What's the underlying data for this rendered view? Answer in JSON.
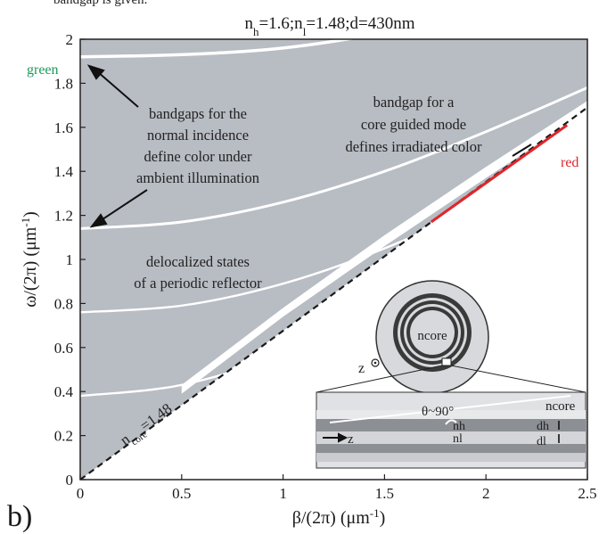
{
  "header_fragment": "bandgap is given.",
  "panel_label": "b)",
  "colors": {
    "plot_bg": "#b8bcc3",
    "band": "#ffffff",
    "red_mode": "#e0262b",
    "green_label": "#1e9a5a",
    "red_label": "#e0262b",
    "text": "#1a1a1a"
  },
  "chart_data": {
    "type": "line",
    "title": "n_h=1.6;n_l=1.48;d=430nm",
    "xlabel": "β/(2π) (μm⁻¹)",
    "ylabel": "ω/(2π) (μm⁻¹)",
    "xlim": [
      0,
      2.5
    ],
    "ylim": [
      0,
      2
    ],
    "xticks": [
      "0",
      "0.5",
      "1",
      "1.5",
      "2",
      "2.5"
    ],
    "yticks": [
      "0",
      "0.2",
      "0.4",
      "0.6",
      "0.8",
      "1",
      "1.2",
      "1.4",
      "1.6",
      "1.8",
      "2"
    ],
    "grid": false,
    "light_line_label": "n_core=1.48",
    "light_line_slope": 0.676,
    "bandgap_curves": [
      {
        "x": [
          0,
          0.5,
          1.0,
          1.5,
          2.0,
          2.5
        ],
        "y": [
          1.92,
          1.93,
          1.96,
          2.03,
          2.13,
          2.26
        ]
      },
      {
        "x": [
          0,
          0.5,
          1.0,
          1.5,
          2.0,
          2.5
        ],
        "y": [
          1.14,
          1.17,
          1.26,
          1.4,
          1.58,
          1.78
        ]
      },
      {
        "x": [
          0,
          0.5,
          1.0,
          1.5,
          2.0,
          2.5
        ],
        "y": [
          0.76,
          0.79,
          0.89,
          1.05,
          1.26,
          1.5
        ]
      },
      {
        "x": [
          0,
          0.5,
          1.0,
          1.5,
          2.0,
          2.5
        ],
        "y": [
          0.38,
          0.43,
          0.57,
          0.78,
          1.03,
          1.3
        ]
      }
    ],
    "edge_band": {
      "x": [
        0.5,
        1.0,
        1.5,
        2.0,
        2.5
      ],
      "y_low": [
        0.39,
        0.74,
        1.06,
        1.37,
        1.67
      ],
      "y_high": [
        0.43,
        0.78,
        1.11,
        1.42,
        1.72
      ]
    },
    "red_mode": {
      "x": [
        1.73,
        2.4
      ],
      "y": [
        1.17,
        1.61
      ]
    },
    "labels": {
      "green": "green",
      "red": "red",
      "annot_normal": [
        "bandgaps for the",
        "normal incidence",
        "define color under",
        "ambient illumination"
      ],
      "annot_core": [
        "bandgap for a",
        "core guided mode",
        "defines irradiated color"
      ],
      "annot_deloc": [
        "delocalized states",
        "of a periodic reflector"
      ]
    },
    "inset": {
      "core_label": "ncore",
      "z_label": "z",
      "zoom_core_label": "ncore",
      "angle_label": "θ~90°",
      "nh_label": "nh",
      "nl_label": "nl",
      "dh_label": "dh",
      "dl_label": "dl",
      "arrow_z_label": "z"
    }
  }
}
